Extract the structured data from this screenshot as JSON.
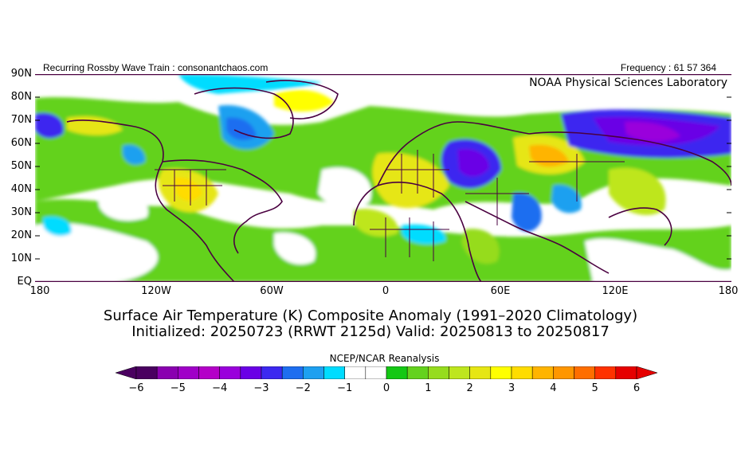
{
  "header": {
    "left_text": "Recurring Rossby Wave Train : consonantchaos.com",
    "right_text": "Frequency : 61 57 364",
    "lab_text": "NOAA Physical Sciences Laboratory"
  },
  "map": {
    "lat_labels": [
      "90N",
      "80N",
      "70N",
      "60N",
      "50N",
      "40N",
      "30N",
      "20N",
      "10N",
      "EQ"
    ],
    "lon_labels": [
      "180",
      "120W",
      "60W",
      "0",
      "60E",
      "120E",
      "180"
    ],
    "region": "Northern Hemisphere, Equator to 90N, 180 to 180",
    "projection": "equirectangular"
  },
  "titles": {
    "line1": "Surface Air Temperature (K) Composite Anomaly (1991–2020 Climatology)",
    "line2": "Initialized: 20250723 (RRWT 2125d) Valid: 20250813 to 20250817"
  },
  "colorbar": {
    "title": "NCEP/NCAR Reanalysis",
    "tick_labels": [
      "−6",
      "−5",
      "−4",
      "−3",
      "−2",
      "−1",
      "0",
      "1",
      "2",
      "3",
      "4",
      "5",
      "6"
    ],
    "colors": [
      "#4a0060",
      "#8a00b0",
      "#a000c8",
      "#b400c8",
      "#9a00dc",
      "#6a00e6",
      "#3c28f0",
      "#1e6ef0",
      "#1ea0f0",
      "#00dcff",
      "#ffffff",
      "#ffffff",
      "#14c814",
      "#64d21e",
      "#96dc1e",
      "#bee61e",
      "#e6e614",
      "#ffff00",
      "#ffdc00",
      "#ffb400",
      "#ff9600",
      "#ff6e00",
      "#ff3200",
      "#e60000"
    ],
    "low_arrow_color": "#4a0060",
    "high_arrow_color": "#e60000"
  }
}
